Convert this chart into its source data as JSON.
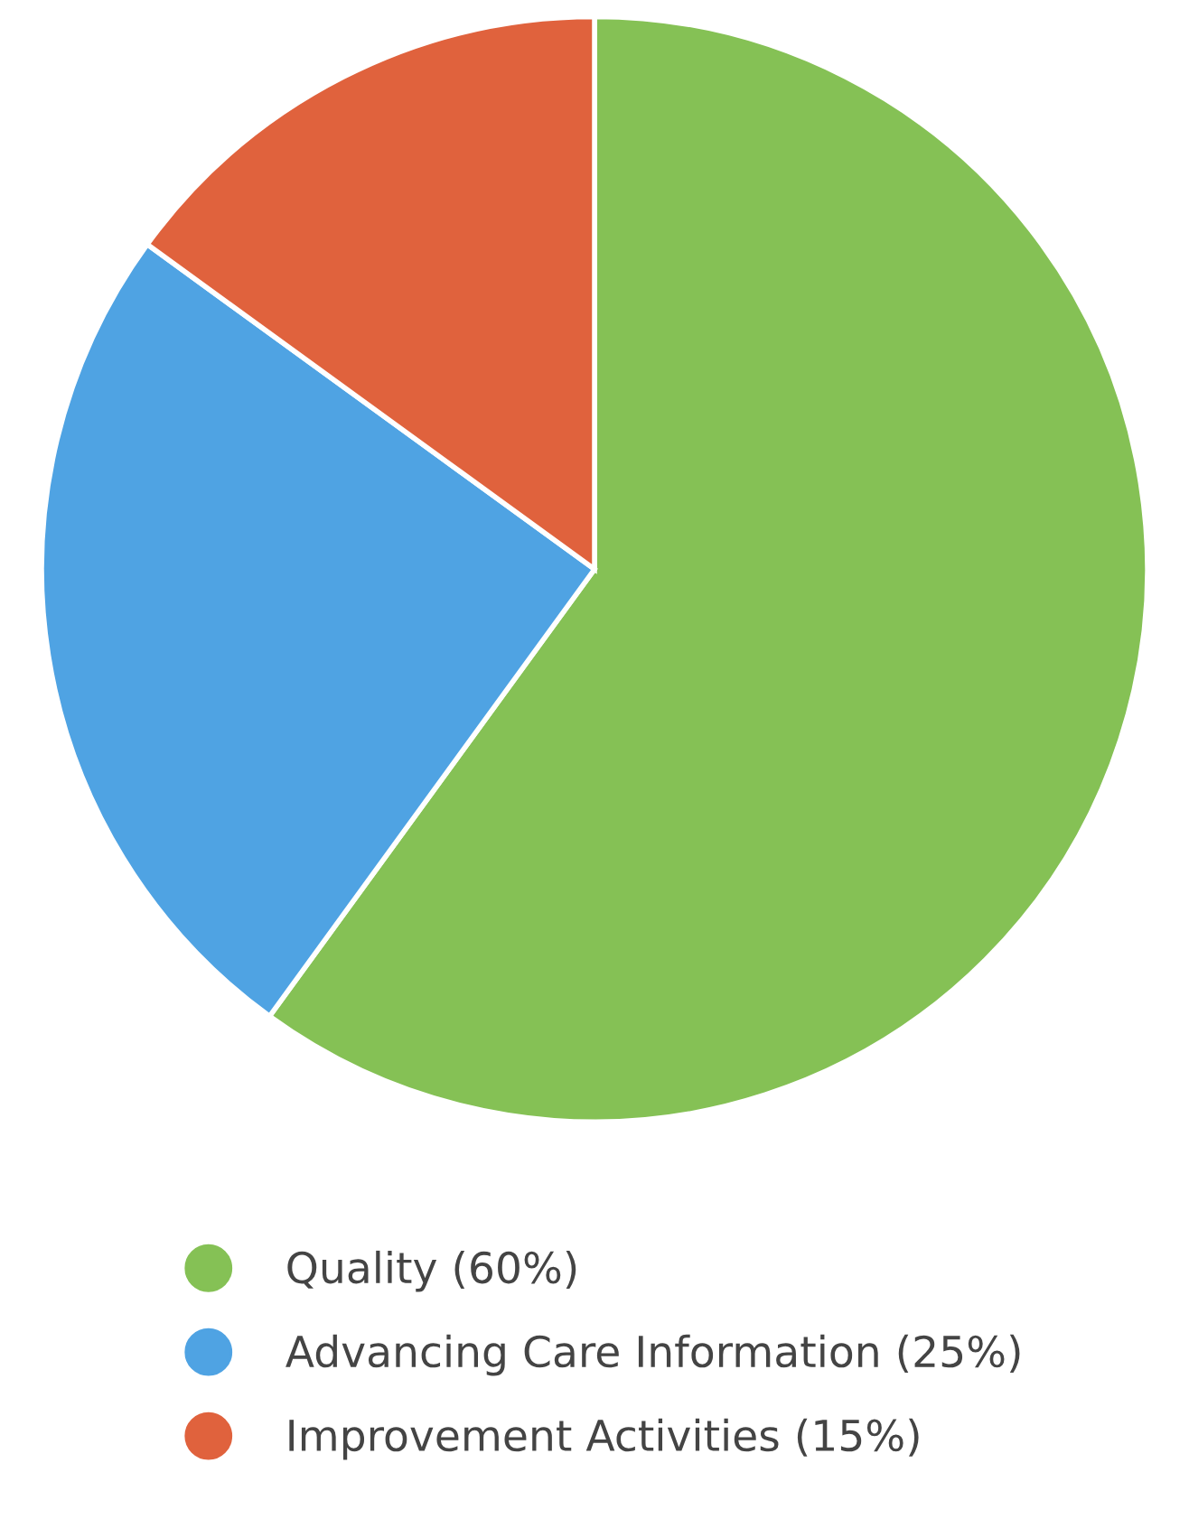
{
  "chart_data": {
    "type": "pie",
    "categories": [
      "Quality (60%)",
      "Advancing Care Information (25%)",
      "Improvement Activities (15%)"
    ],
    "values": [
      60,
      25,
      15
    ],
    "colors": [
      "#85c155",
      "#4fa3e3",
      "#e0623d"
    ],
    "legend": "bottom"
  }
}
